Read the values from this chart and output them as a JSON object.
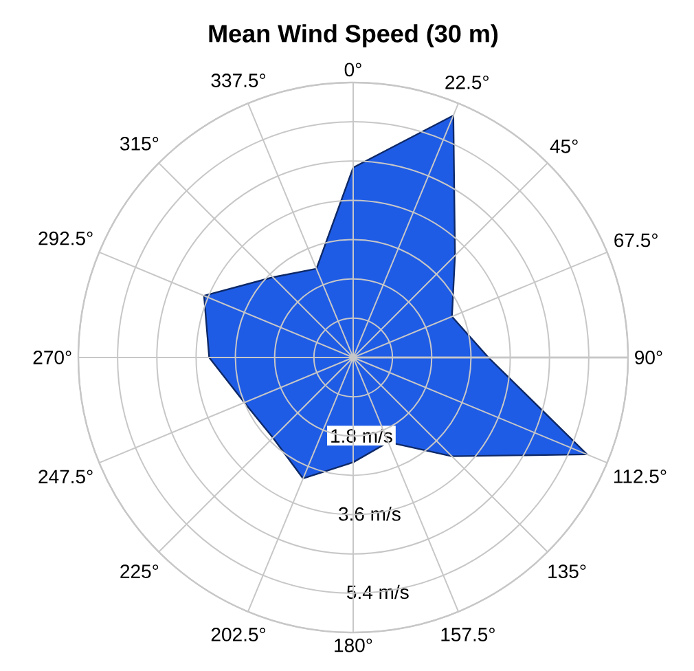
{
  "chart_data": {
    "type": "radar",
    "title": "Mean Wind Speed (30 m)",
    "categories": [
      "0°",
      "22.5°",
      "45°",
      "67.5°",
      "90°",
      "112.5°",
      "135°",
      "157.5°",
      "180°",
      "202.5°",
      "225°",
      "247.5°",
      "270°",
      "292.5°",
      "315°",
      "337.5°"
    ],
    "series": [
      {
        "color": "#1f5ce6",
        "values": [
          4.35,
          6.0,
          3.3,
          2.45,
          3.1,
          5.8,
          3.2,
          2.1,
          2.4,
          3.0,
          2.6,
          2.7,
          3.3,
          3.7,
          2.6,
          2.2
        ]
      }
    ],
    "ylim": [
      0,
      6.3
    ],
    "yticks": [
      {
        "value": 1.8,
        "label": "1.8 m/s"
      },
      {
        "value": 3.6,
        "label": "3.6 m/s"
      },
      {
        "value": 5.4,
        "label": "5.4 m/s"
      }
    ],
    "grid": true
  }
}
